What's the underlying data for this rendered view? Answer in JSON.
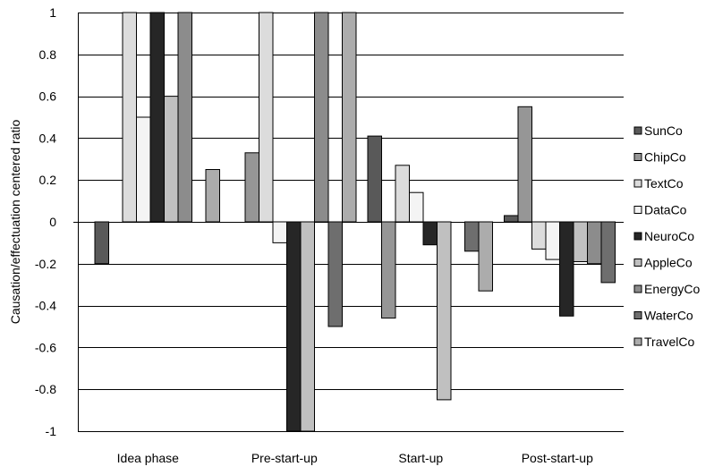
{
  "chart_data": {
    "type": "bar",
    "title": "",
    "xlabel": "",
    "ylabel": "Causation/effectuation centered ratio",
    "ylim": [
      -1,
      1
    ],
    "yticks": [
      1,
      0.8,
      0.6,
      0.4,
      0.2,
      0,
      -0.2,
      -0.4,
      -0.6,
      -0.8,
      -1
    ],
    "ytick_labels": [
      "1",
      "0.8",
      "0.6",
      "0.4",
      "0.2",
      "0",
      "-0.2",
      "-0.4",
      "-0.6",
      "-0.8",
      "-1"
    ],
    "grid": "horizontal",
    "legend_position": "right",
    "categories": [
      "Idea phase",
      "Pre-start-up",
      "Start-up",
      "Post-start-up"
    ],
    "series": [
      {
        "name": "SunCo",
        "color": "#595959",
        "values": [
          -0.2,
          0.0,
          0.41,
          0.03
        ]
      },
      {
        "name": "ChipCo",
        "color": "#969696",
        "values": [
          0.0,
          0.33,
          -0.46,
          0.55
        ]
      },
      {
        "name": "TextCo",
        "color": "#dcdcdc",
        "values": [
          1.0,
          1.0,
          0.27,
          -0.13
        ]
      },
      {
        "name": "DataCo",
        "color": "#f4f4f4",
        "values": [
          0.5,
          -0.1,
          0.14,
          -0.18
        ]
      },
      {
        "name": "NeuroCo",
        "color": "#262626",
        "values": [
          1.0,
          -1.0,
          -0.11,
          -0.45
        ]
      },
      {
        "name": "AppleCo",
        "color": "#c0c0c0",
        "values": [
          0.6,
          -1.0,
          -0.85,
          -0.19
        ]
      },
      {
        "name": "EnergyCo",
        "color": "#8c8c8c",
        "values": [
          1.0,
          1.0,
          0.0,
          -0.2
        ]
      },
      {
        "name": "WaterCo",
        "color": "#6e6e6e",
        "values": [
          0.0,
          -0.5,
          -0.14,
          -0.29
        ]
      },
      {
        "name": "TravelCo",
        "color": "#acacac",
        "values": [
          0.25,
          1.0,
          -0.33,
          0.0
        ]
      }
    ]
  }
}
